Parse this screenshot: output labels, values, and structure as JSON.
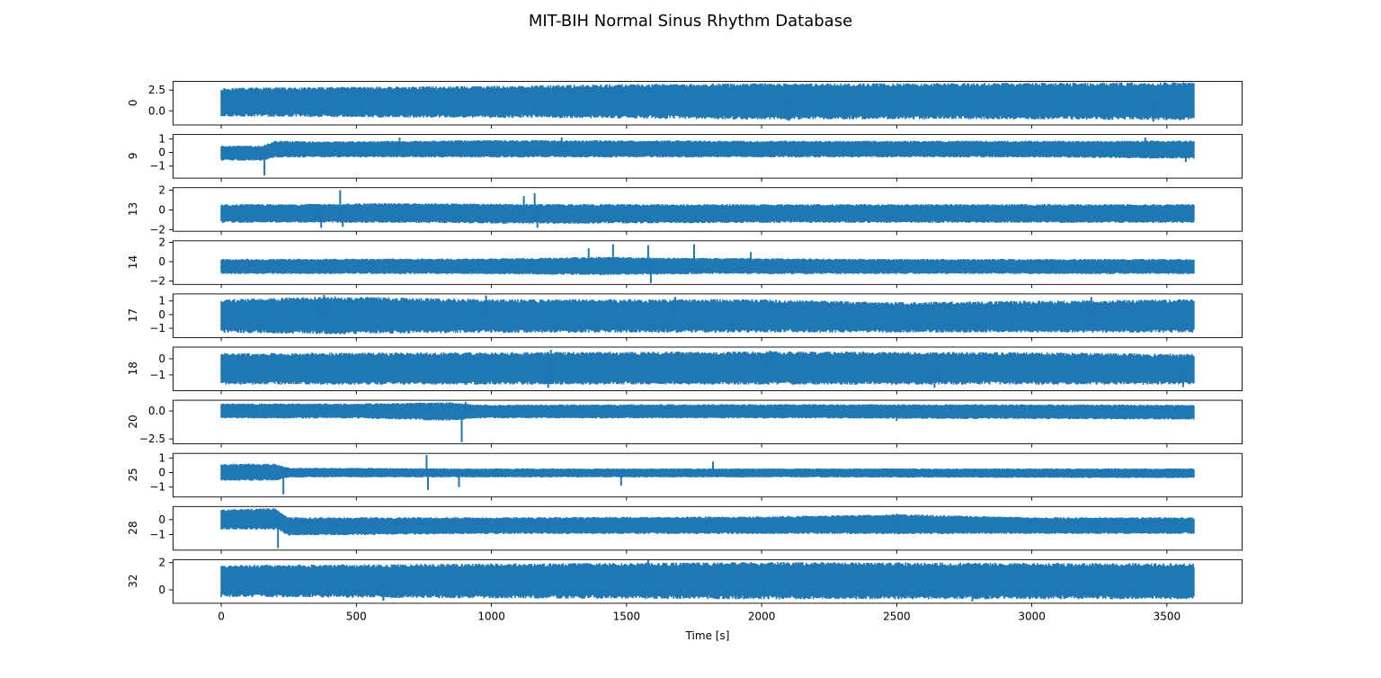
{
  "chart_data": {
    "type": "line",
    "title": "MIT-BIH Normal Sinus Rhythm Database",
    "xlabel": "Time [s]",
    "xlim": [
      -180,
      3780
    ],
    "x_ticks": [
      0,
      500,
      1000,
      1500,
      2000,
      2500,
      3000,
      3500
    ],
    "x_tick_labels": [
      "0",
      "500",
      "1000",
      "1500",
      "2000",
      "2500",
      "3000",
      "3500"
    ],
    "signal_x_range": [
      0,
      3600
    ],
    "line_color": "#1f77b4",
    "grid": false,
    "panels": [
      {
        "ylabel": "0",
        "ylim": [
          -1.65,
          3.6
        ],
        "y_ticks": [
          0,
          2.5
        ],
        "y_tick_labels": [
          "0.0",
          "2.5"
        ],
        "envelope": [
          {
            "x": 0,
            "low": -0.5,
            "high": 2.6
          },
          {
            "x": 500,
            "low": -0.6,
            "high": 2.7
          },
          {
            "x": 1000,
            "low": -0.65,
            "high": 2.8
          },
          {
            "x": 1500,
            "low": -0.7,
            "high": 3.0
          },
          {
            "x": 2000,
            "low": -0.85,
            "high": 3.1
          },
          {
            "x": 2500,
            "low": -0.8,
            "high": 3.1
          },
          {
            "x": 3000,
            "low": -0.8,
            "high": 3.15
          },
          {
            "x": 3600,
            "low": -0.9,
            "high": 3.2
          }
        ],
        "spikes": [
          {
            "x": 2100,
            "value": -1.2
          },
          {
            "x": 3450,
            "value": -1.3
          }
        ]
      },
      {
        "ylabel": "9",
        "ylim": [
          -1.85,
          1.35
        ],
        "y_ticks": [
          -1,
          0,
          1
        ],
        "y_tick_labels": [
          "−1",
          "0",
          "1"
        ],
        "envelope": [
          {
            "x": 0,
            "low": -0.55,
            "high": 0.45
          },
          {
            "x": 150,
            "low": -0.55,
            "high": 0.45
          },
          {
            "x": 200,
            "low": -0.3,
            "high": 0.8
          },
          {
            "x": 400,
            "low": -0.3,
            "high": 0.75
          },
          {
            "x": 1000,
            "low": -0.3,
            "high": 0.85
          },
          {
            "x": 2000,
            "low": -0.3,
            "high": 0.8
          },
          {
            "x": 3000,
            "low": -0.3,
            "high": 0.8
          },
          {
            "x": 3600,
            "low": -0.4,
            "high": 0.8
          }
        ],
        "spikes": [
          {
            "x": 160,
            "value": -1.7
          },
          {
            "x": 660,
            "value": 1.1
          },
          {
            "x": 1260,
            "value": 1.1
          },
          {
            "x": 3420,
            "value": 1.1
          },
          {
            "x": 3570,
            "value": -0.7
          }
        ]
      },
      {
        "ylabel": "13",
        "ylim": [
          -2.1,
          2.3
        ],
        "y_ticks": [
          -2,
          0,
          2
        ],
        "y_tick_labels": [
          "−2",
          "0",
          "2"
        ],
        "envelope": [
          {
            "x": 0,
            "low": -1.2,
            "high": 0.5
          },
          {
            "x": 300,
            "low": -1.2,
            "high": 0.5
          },
          {
            "x": 600,
            "low": -1.2,
            "high": 0.6
          },
          {
            "x": 1200,
            "low": -1.3,
            "high": 0.5
          },
          {
            "x": 2000,
            "low": -1.2,
            "high": 0.5
          },
          {
            "x": 3000,
            "low": -1.2,
            "high": 0.5
          },
          {
            "x": 3600,
            "low": -1.2,
            "high": 0.5
          }
        ],
        "spikes": [
          {
            "x": 370,
            "value": -1.8
          },
          {
            "x": 440,
            "value": 2.0
          },
          {
            "x": 450,
            "value": -1.7
          },
          {
            "x": 1120,
            "value": 1.4
          },
          {
            "x": 1160,
            "value": 1.7
          },
          {
            "x": 1170,
            "value": -1.8
          }
        ]
      },
      {
        "ylabel": "14",
        "ylim": [
          -2.3,
          2.2
        ],
        "y_ticks": [
          -2,
          0,
          2
        ],
        "y_tick_labels": [
          "−2",
          "0",
          "2"
        ],
        "envelope": [
          {
            "x": 0,
            "low": -1.2,
            "high": 0.2
          },
          {
            "x": 1000,
            "low": -1.2,
            "high": 0.25
          },
          {
            "x": 1400,
            "low": -1.3,
            "high": 0.4
          },
          {
            "x": 1800,
            "low": -1.2,
            "high": 0.3
          },
          {
            "x": 2500,
            "low": -1.2,
            "high": 0.2
          },
          {
            "x": 3600,
            "low": -1.2,
            "high": 0.2
          }
        ],
        "spikes": [
          {
            "x": 1360,
            "value": 1.4
          },
          {
            "x": 1450,
            "value": 1.8
          },
          {
            "x": 1580,
            "value": 1.7
          },
          {
            "x": 1590,
            "value": -2.2
          },
          {
            "x": 1750,
            "value": 1.8
          },
          {
            "x": 1960,
            "value": 1.0
          }
        ]
      },
      {
        "ylabel": "17",
        "ylim": [
          -1.65,
          1.55
        ],
        "y_ticks": [
          -1,
          0,
          1
        ],
        "y_tick_labels": [
          "−1",
          "0",
          "1"
        ],
        "envelope": [
          {
            "x": 0,
            "low": -1.2,
            "high": 1.0
          },
          {
            "x": 400,
            "low": -1.3,
            "high": 1.2
          },
          {
            "x": 1000,
            "low": -1.2,
            "high": 1.0
          },
          {
            "x": 2000,
            "low": -1.2,
            "high": 1.0
          },
          {
            "x": 2500,
            "low": -1.2,
            "high": 0.8
          },
          {
            "x": 3000,
            "low": -1.2,
            "high": 0.9
          },
          {
            "x": 3600,
            "low": -1.2,
            "high": 1.0
          }
        ],
        "spikes": [
          {
            "x": 380,
            "value": 1.45
          },
          {
            "x": 980,
            "value": 1.4
          },
          {
            "x": 1680,
            "value": 1.3
          },
          {
            "x": 3220,
            "value": 1.3
          }
        ]
      },
      {
        "ylabel": "18",
        "ylim": [
          -1.95,
          0.75
        ],
        "y_ticks": [
          -1,
          0
        ],
        "y_tick_labels": [
          "−1",
          "0"
        ],
        "envelope": [
          {
            "x": 0,
            "low": -1.5,
            "high": 0.25
          },
          {
            "x": 1000,
            "low": -1.5,
            "high": 0.3
          },
          {
            "x": 2000,
            "low": -1.5,
            "high": 0.35
          },
          {
            "x": 3000,
            "low": -1.5,
            "high": 0.3
          },
          {
            "x": 3600,
            "low": -1.5,
            "high": 0.2
          }
        ],
        "spikes": [
          {
            "x": 1210,
            "value": -1.8
          },
          {
            "x": 1220,
            "value": 0.55
          },
          {
            "x": 2030,
            "value": 0.5
          },
          {
            "x": 2640,
            "value": -1.8
          },
          {
            "x": 3560,
            "value": -1.75
          }
        ]
      },
      {
        "ylabel": "20",
        "ylim": [
          -2.9,
          1.0
        ],
        "y_ticks": [
          -2.5,
          0
        ],
        "y_tick_labels": [
          "−2.5",
          "0.0"
        ],
        "envelope": [
          {
            "x": 0,
            "low": -0.6,
            "high": 0.6
          },
          {
            "x": 500,
            "low": -0.6,
            "high": 0.6
          },
          {
            "x": 850,
            "low": -0.8,
            "high": 0.7
          },
          {
            "x": 950,
            "low": -0.6,
            "high": 0.5
          },
          {
            "x": 2000,
            "low": -0.6,
            "high": 0.55
          },
          {
            "x": 3600,
            "low": -0.7,
            "high": 0.5
          }
        ],
        "spikes": [
          {
            "x": 890,
            "value": -2.8
          },
          {
            "x": 905,
            "value": 0.8
          },
          {
            "x": 2500,
            "value": -0.9
          }
        ]
      },
      {
        "ylabel": "25",
        "ylim": [
          -1.65,
          1.35
        ],
        "y_ticks": [
          -1,
          0,
          1
        ],
        "y_tick_labels": [
          "−1",
          "0",
          "1"
        ],
        "envelope": [
          {
            "x": 0,
            "low": -0.5,
            "high": 0.55
          },
          {
            "x": 200,
            "low": -0.5,
            "high": 0.55
          },
          {
            "x": 250,
            "low": -0.3,
            "high": 0.3
          },
          {
            "x": 1000,
            "low": -0.3,
            "high": 0.25
          },
          {
            "x": 2000,
            "low": -0.3,
            "high": 0.25
          },
          {
            "x": 3600,
            "low": -0.35,
            "high": 0.25
          }
        ],
        "spikes": [
          {
            "x": 230,
            "value": -1.5
          },
          {
            "x": 760,
            "value": 1.2
          },
          {
            "x": 765,
            "value": -1.2
          },
          {
            "x": 880,
            "value": -1.0
          },
          {
            "x": 1480,
            "value": -0.9
          },
          {
            "x": 1820,
            "value": 0.75
          }
        ]
      },
      {
        "ylabel": "28",
        "ylim": [
          -2.0,
          0.9
        ],
        "y_ticks": [
          -1,
          0
        ],
        "y_tick_labels": [
          "−1",
          "0"
        ],
        "envelope": [
          {
            "x": 0,
            "low": -0.6,
            "high": 0.6
          },
          {
            "x": 200,
            "low": -0.6,
            "high": 0.7
          },
          {
            "x": 250,
            "low": -1.0,
            "high": 0.1
          },
          {
            "x": 1000,
            "low": -0.9,
            "high": 0.1
          },
          {
            "x": 2000,
            "low": -0.9,
            "high": 0.15
          },
          {
            "x": 2500,
            "low": -0.9,
            "high": 0.3
          },
          {
            "x": 3000,
            "low": -0.9,
            "high": 0.1
          },
          {
            "x": 3600,
            "low": -0.9,
            "high": 0.1
          }
        ],
        "spikes": [
          {
            "x": 210,
            "value": -1.9
          },
          {
            "x": 2500,
            "value": 0.4
          }
        ]
      },
      {
        "ylabel": "32",
        "ylim": [
          -0.95,
          2.25
        ],
        "y_ticks": [
          0,
          2
        ],
        "y_tick_labels": [
          "0",
          "2"
        ],
        "envelope": [
          {
            "x": 0,
            "low": -0.4,
            "high": 1.7
          },
          {
            "x": 1000,
            "low": -0.5,
            "high": 1.8
          },
          {
            "x": 2000,
            "low": -0.55,
            "high": 1.9
          },
          {
            "x": 3000,
            "low": -0.55,
            "high": 1.85
          },
          {
            "x": 3600,
            "low": -0.55,
            "high": 1.8
          }
        ],
        "spikes": [
          {
            "x": 600,
            "value": -0.8
          },
          {
            "x": 1580,
            "value": 2.2
          },
          {
            "x": 2780,
            "value": -0.85
          }
        ]
      }
    ]
  }
}
